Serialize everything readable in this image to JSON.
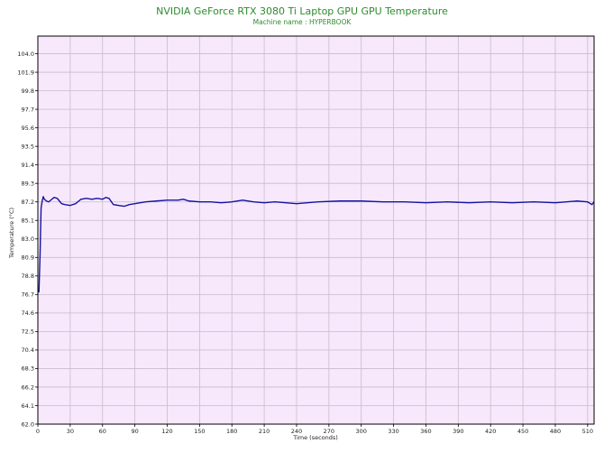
{
  "chart_data": {
    "type": "line",
    "title": "NVIDIA GeForce RTX 3080 Ti Laptop GPU GPU Temperature",
    "subtitle": "Machine name : HYPERBOOK",
    "xlabel": "Time (seconds)",
    "ylabel": "Temperature (°C)",
    "xlim": [
      0,
      516
    ],
    "ylim": [
      62.0,
      106.0
    ],
    "x_ticks": [
      0,
      30,
      60,
      90,
      120,
      150,
      180,
      210,
      240,
      270,
      300,
      330,
      360,
      390,
      420,
      450,
      480,
      510
    ],
    "y_ticks": [
      "62.0",
      "64.1",
      "66.2",
      "68.3",
      "70.4",
      "72.5",
      "74.6",
      "76.7",
      "78.8",
      "80.9",
      "83.0",
      "85.1",
      "87.2",
      "89.3",
      "91.4",
      "93.5",
      "95.6",
      "97.7",
      "99.8",
      "101.9",
      "104.0"
    ],
    "grid": true,
    "background_color": "#f7e8fc",
    "grid_color": "#c8bccd",
    "series": [
      {
        "name": "",
        "color": "#1414a0",
        "x": [
          0,
          1,
          2,
          3,
          4,
          5,
          6,
          8,
          10,
          12,
          15,
          18,
          20,
          22,
          25,
          30,
          35,
          38,
          40,
          45,
          50,
          55,
          60,
          63,
          66,
          70,
          75,
          80,
          85,
          90,
          95,
          100,
          110,
          120,
          130,
          135,
          140,
          150,
          160,
          170,
          180,
          190,
          200,
          210,
          220,
          240,
          260,
          280,
          300,
          320,
          340,
          360,
          380,
          400,
          420,
          440,
          460,
          480,
          500,
          510,
          514,
          516
        ],
        "y": [
          77.0,
          77.0,
          81.0,
          86.5,
          87.3,
          87.8,
          87.5,
          87.3,
          87.2,
          87.4,
          87.7,
          87.6,
          87.3,
          87.0,
          86.9,
          86.8,
          87.0,
          87.3,
          87.5,
          87.6,
          87.5,
          87.6,
          87.5,
          87.7,
          87.6,
          86.9,
          86.8,
          86.7,
          86.9,
          87.0,
          87.1,
          87.2,
          87.3,
          87.4,
          87.4,
          87.5,
          87.3,
          87.2,
          87.2,
          87.1,
          87.2,
          87.4,
          87.2,
          87.1,
          87.2,
          87.0,
          87.2,
          87.3,
          87.3,
          87.2,
          87.2,
          87.1,
          87.2,
          87.1,
          87.2,
          87.1,
          87.2,
          87.1,
          87.3,
          87.2,
          86.9,
          87.2
        ]
      }
    ]
  }
}
